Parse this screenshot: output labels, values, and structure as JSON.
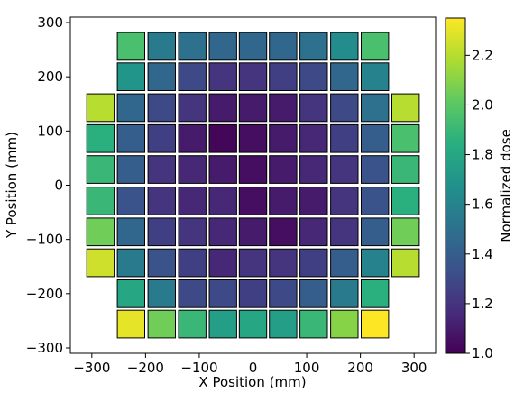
{
  "chart_data": {
    "type": "heatmap",
    "title": "",
    "xlabel": "X Position (mm)",
    "ylabel": "Y Position (mm)",
    "colorbar_label": "Normalized dose",
    "colormap": "viridis",
    "vmin": 1.0,
    "vmax": 2.35,
    "xlim": [
      -340,
      340
    ],
    "ylim": [
      -310,
      310
    ],
    "xticks": [
      -300,
      -200,
      -100,
      0,
      100,
      200,
      300
    ],
    "yticks": [
      -300,
      -200,
      -100,
      0,
      100,
      200,
      300
    ],
    "colorbar_ticks": [
      1.0,
      1.2,
      1.4,
      1.6,
      1.8,
      2.0,
      2.2
    ],
    "tile_size_mm": 51,
    "x_centers": [
      -284,
      -227,
      -170,
      -113,
      -56,
      0,
      56,
      113,
      170,
      227,
      284
    ],
    "y_centers": [
      256,
      200,
      143,
      86,
      29,
      -29,
      -86,
      -143,
      -200,
      -256
    ],
    "values": [
      [
        null,
        1.95,
        1.55,
        1.5,
        1.45,
        1.45,
        1.45,
        1.5,
        1.65,
        1.95,
        null
      ],
      [
        null,
        1.7,
        1.45,
        1.3,
        1.2,
        1.2,
        1.25,
        1.3,
        1.45,
        1.6,
        null
      ],
      [
        2.2,
        1.45,
        1.3,
        1.2,
        1.1,
        1.1,
        1.1,
        1.2,
        1.3,
        1.5,
        2.2
      ],
      [
        1.85,
        1.4,
        1.25,
        1.1,
        1.02,
        1.05,
        1.1,
        1.15,
        1.25,
        1.4,
        1.95
      ],
      [
        1.9,
        1.4,
        1.2,
        1.15,
        1.1,
        1.05,
        1.1,
        1.15,
        1.2,
        1.35,
        1.9
      ],
      [
        1.9,
        1.35,
        1.2,
        1.15,
        1.15,
        1.05,
        1.1,
        1.1,
        1.2,
        1.35,
        1.85
      ],
      [
        2.05,
        1.45,
        1.25,
        1.2,
        1.15,
        1.1,
        1.05,
        1.15,
        1.2,
        1.4,
        2.05
      ],
      [
        2.25,
        1.55,
        1.35,
        1.25,
        1.15,
        1.2,
        1.2,
        1.25,
        1.4,
        1.6,
        2.2
      ],
      [
        null,
        1.8,
        1.55,
        1.3,
        1.3,
        1.25,
        1.3,
        1.4,
        1.55,
        1.85,
        null
      ],
      [
        null,
        2.3,
        2.05,
        1.9,
        1.75,
        1.8,
        1.75,
        1.9,
        2.1,
        2.35,
        null
      ]
    ]
  }
}
